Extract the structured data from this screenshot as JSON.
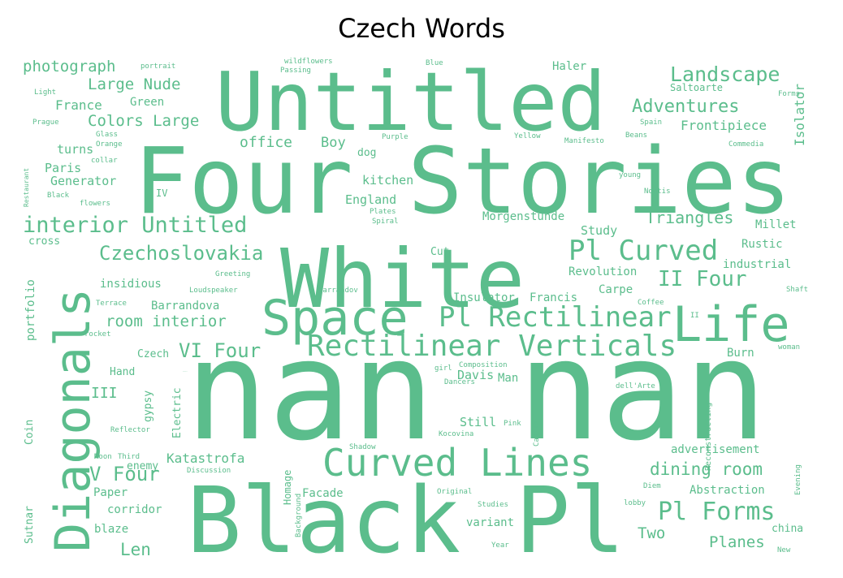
{
  "chart_data": {
    "type": "wordcloud",
    "title": "Czech Words",
    "color": "#5bbd8c",
    "words": [
      {
        "text": "nan nan",
        "weight": 100
      },
      {
        "text": "Four Stories",
        "weight": 78
      },
      {
        "text": "Black Pl",
        "weight": 78
      },
      {
        "text": "Untitled",
        "weight": 74
      },
      {
        "text": "White",
        "weight": 70
      },
      {
        "text": "Diagonals",
        "weight": 46
      },
      {
        "text": "Life",
        "weight": 46
      },
      {
        "text": "Space",
        "weight": 44
      },
      {
        "text": "Curved Lines",
        "weight": 36
      },
      {
        "text": "Rectilinear Verticals",
        "weight": 28
      },
      {
        "text": "Pl Rectilinear",
        "weight": 27
      },
      {
        "text": "Pl Curved",
        "weight": 27
      },
      {
        "text": "Pl Forms",
        "weight": 25
      },
      {
        "text": "interior Untitled",
        "weight": 23
      },
      {
        "text": "Landscape",
        "weight": 21
      },
      {
        "text": "Czechoslovakia",
        "weight": 21
      },
      {
        "text": "II Four",
        "weight": 21
      },
      {
        "text": "VI Four",
        "weight": 21
      },
      {
        "text": "V Four",
        "weight": 21
      },
      {
        "text": "Adventures",
        "weight": 19
      },
      {
        "text": "Triangles",
        "weight": 18
      },
      {
        "text": "dining room",
        "weight": 18
      },
      {
        "text": "Len",
        "weight": 18
      },
      {
        "text": "Large Nude",
        "weight": 16
      },
      {
        "text": "Colors Large",
        "weight": 16
      },
      {
        "text": "photograph",
        "weight": 16
      },
      {
        "text": "room interior",
        "weight": 16
      },
      {
        "text": "Planes",
        "weight": 16
      },
      {
        "text": "Two",
        "weight": 16
      },
      {
        "text": "office",
        "weight": 15
      },
      {
        "text": "Boy",
        "weight": 15
      },
      {
        "text": "III",
        "weight": 15
      },
      {
        "text": "France",
        "weight": 14
      },
      {
        "text": "Frontipiece",
        "weight": 14
      },
      {
        "text": "Katastrofa",
        "weight": 14
      },
      {
        "text": "Isolator",
        "weight": 14
      },
      {
        "text": "Davis",
        "weight": 14
      },
      {
        "text": "Study",
        "weight": 14
      },
      {
        "text": "Paris",
        "weight": 13
      },
      {
        "text": "Generator",
        "weight": 13
      },
      {
        "text": "turns",
        "weight": 13
      },
      {
        "text": "England",
        "weight": 13
      },
      {
        "text": "kitchen",
        "weight": 13
      },
      {
        "text": "Morgenstunde",
        "weight": 13
      },
      {
        "text": "Barrandova",
        "weight": 13
      },
      {
        "text": "insidious",
        "weight": 13
      },
      {
        "text": "Insulator",
        "weight": 13
      },
      {
        "text": "Francis",
        "weight": 13
      },
      {
        "text": "Still",
        "weight": 13
      },
      {
        "text": "advertisement",
        "weight": 13
      },
      {
        "text": "Abstraction",
        "weight": 13
      },
      {
        "text": "Paper",
        "weight": 13
      },
      {
        "text": "corridor",
        "weight": 13
      },
      {
        "text": "blaze",
        "weight": 13
      },
      {
        "text": "variant",
        "weight": 13
      },
      {
        "text": "Facade",
        "weight": 13
      },
      {
        "text": "Millet",
        "weight": 13
      },
      {
        "text": "Rustic",
        "weight": 13
      },
      {
        "text": "industrial",
        "weight": 13
      },
      {
        "text": "Revolution",
        "weight": 13
      },
      {
        "text": "Carpe",
        "weight": 13
      },
      {
        "text": "Burn",
        "weight": 13
      },
      {
        "text": "Man",
        "weight": 13
      },
      {
        "text": "Haler",
        "weight": 13
      },
      {
        "text": "Green",
        "weight": 13
      },
      {
        "text": "enemy",
        "weight": 13
      },
      {
        "text": "Hand",
        "weight": 13
      },
      {
        "text": "Czech",
        "weight": 12
      },
      {
        "text": "cross",
        "weight": 12
      },
      {
        "text": "china",
        "weight": 12
      },
      {
        "text": "dog",
        "weight": 12
      },
      {
        "text": "Electric",
        "weight": 12
      },
      {
        "text": "gypsy",
        "weight": 12
      },
      {
        "text": "Diagonals",
        "weight": 12
      },
      {
        "text": "portfolio",
        "weight": 12
      },
      {
        "text": "Coin",
        "weight": 12
      },
      {
        "text": "Sutnar",
        "weight": 12
      },
      {
        "text": "IV",
        "weight": 12
      },
      {
        "text": "Reconstructing",
        "weight": 8
      },
      {
        "text": "Saltoarte",
        "weight": 10
      },
      {
        "text": "Cut",
        "weight": 12
      },
      {
        "text": "Homage",
        "weight": 11
      },
      {
        "text": "Background",
        "weight": 9
      },
      {
        "text": "Reflector",
        "weight": 9
      },
      {
        "text": "Moon",
        "weight": 9
      },
      {
        "text": "Third",
        "weight": 9
      },
      {
        "text": "Discussion",
        "weight": 9
      },
      {
        "text": "Shadow",
        "weight": 9
      },
      {
        "text": "Original",
        "weight": 9
      },
      {
        "text": "Studies",
        "weight": 9
      },
      {
        "text": "Year",
        "weight": 9
      },
      {
        "text": "lobby",
        "weight": 9
      },
      {
        "text": "Diem",
        "weight": 9
      },
      {
        "text": "Evening",
        "weight": 9
      },
      {
        "text": "New",
        "weight": 9
      },
      {
        "text": "Castle",
        "weight": 9
      },
      {
        "text": "Kocovina",
        "weight": 9
      },
      {
        "text": "Pink",
        "weight": 9
      },
      {
        "text": "Dancers",
        "weight": 9
      },
      {
        "text": "dell'Arte",
        "weight": 9
      },
      {
        "text": "woman",
        "weight": 9
      },
      {
        "text": "Composition",
        "weight": 9
      },
      {
        "text": "girl",
        "weight": 9
      },
      {
        "text": "Terrace",
        "weight": 9
      },
      {
        "text": "rocket",
        "weight": 9
      },
      {
        "text": "Loudspeaker",
        "weight": 9
      },
      {
        "text": "Barrandov",
        "weight": 9
      },
      {
        "text": "Coffee",
        "weight": 9
      },
      {
        "text": "Shaft",
        "weight": 9
      },
      {
        "text": "II",
        "weight": 9
      },
      {
        "text": "Greeting",
        "weight": 9
      },
      {
        "text": "Noctis",
        "weight": 9
      },
      {
        "text": "Spiral",
        "weight": 9
      },
      {
        "text": "Plates",
        "weight": 9
      },
      {
        "text": "young",
        "weight": 9
      },
      {
        "text": "Commedia",
        "weight": 9
      },
      {
        "text": "Beans",
        "weight": 9
      },
      {
        "text": "Manifesto",
        "weight": 9
      },
      {
        "text": "Yellow",
        "weight": 9
      },
      {
        "text": "Purple",
        "weight": 9
      },
      {
        "text": "Spain",
        "weight": 9
      },
      {
        "text": "Forms",
        "weight": 9
      },
      {
        "text": "Blue",
        "weight": 9
      },
      {
        "text": "Passing",
        "weight": 9
      },
      {
        "text": "wildflowers",
        "weight": 9
      },
      {
        "text": "portrait",
        "weight": 9
      },
      {
        "text": "Light",
        "weight": 9
      },
      {
        "text": "Prague",
        "weight": 9
      },
      {
        "text": "Glass",
        "weight": 9
      },
      {
        "text": "Orange",
        "weight": 9
      },
      {
        "text": "collar",
        "weight": 9
      },
      {
        "text": "Black",
        "weight": 9
      },
      {
        "text": "flowers",
        "weight": 9
      },
      {
        "text": "Restaurant",
        "weight": 8
      }
    ]
  }
}
